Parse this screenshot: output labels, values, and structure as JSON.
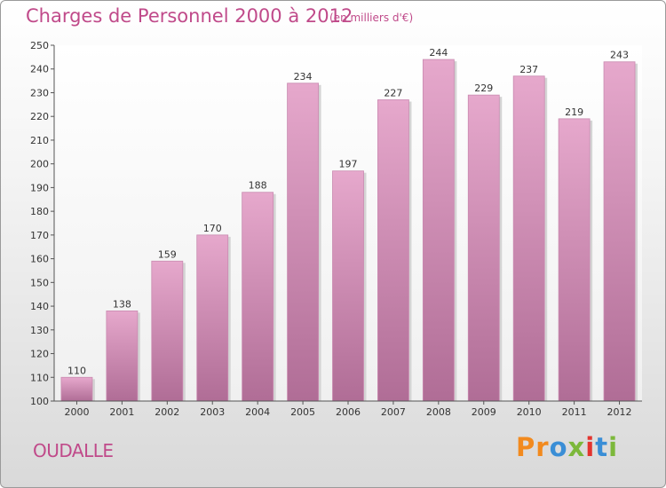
{
  "header": {
    "title": "Charges de Personnel 2000 à 2012",
    "subtitle": "(en milliers d'€)"
  },
  "footer": {
    "commune": "OUDALLE",
    "logo": "Proxiti"
  },
  "colors": {
    "title": "#c04a8a",
    "bar_top": "#e6a8cc",
    "bar_bottom": "#b06d96",
    "logo": [
      "#f28a1e",
      "#f28a1e",
      "#3a8ed6",
      "#7cb83b",
      "#e3342f",
      "#3a8ed6",
      "#7cb83b"
    ]
  },
  "chart_data": {
    "type": "bar",
    "title": "Charges de Personnel 2000 à 2012",
    "subtitle": "(en milliers d'€)",
    "categories": [
      "2000",
      "2001",
      "2002",
      "2003",
      "2004",
      "2005",
      "2006",
      "2007",
      "2008",
      "2009",
      "2010",
      "2011",
      "2012"
    ],
    "values": [
      110,
      138,
      159,
      170,
      188,
      234,
      197,
      227,
      244,
      229,
      237,
      219,
      243
    ],
    "ylim": [
      100,
      250
    ],
    "yticks": [
      100,
      110,
      120,
      130,
      140,
      150,
      160,
      170,
      180,
      190,
      200,
      210,
      220,
      230,
      240,
      250
    ],
    "grid": false
  }
}
